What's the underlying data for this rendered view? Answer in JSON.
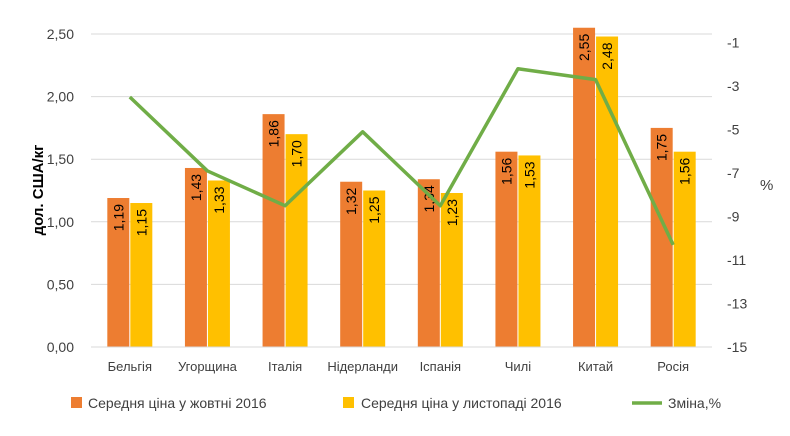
{
  "chart_data": {
    "type": "bar+line",
    "categories": [
      "Бельгія",
      "Угорщина",
      "Італія",
      "Нідерланди",
      "Іспанія",
      "Чилі",
      "Китай",
      "Росія"
    ],
    "series": [
      {
        "name": "Середня ціна у жовтні 2016",
        "type": "bar",
        "axis": "left",
        "color": "#ED7D31",
        "values": [
          1.19,
          1.43,
          1.86,
          1.32,
          1.34,
          1.56,
          2.55,
          1.75
        ],
        "labels": [
          "1,19",
          "1,43",
          "1,86",
          "1,32",
          "1,34",
          "1,56",
          "2,55",
          "1,75"
        ]
      },
      {
        "name": "Середня ціна у листопаді 2016",
        "type": "bar",
        "axis": "right",
        "color": "#FFC000",
        "values": [
          1.15,
          1.33,
          1.7,
          1.25,
          1.23,
          1.53,
          2.48,
          1.56
        ],
        "labels": [
          "1,15",
          "1,33",
          "1,70",
          "1,25",
          "1,23",
          "1,53",
          "2,48",
          "1,56"
        ]
      },
      {
        "name": "Зміна,%",
        "type": "line",
        "axis": "right",
        "color": "#70AD47",
        "values": [
          -3.5,
          -6.9,
          -8.5,
          -5.1,
          -8.5,
          -2.2,
          -2.7,
          -10.3
        ]
      }
    ],
    "ylabel": "дол. США/кг",
    "y2label": "%",
    "ylim": [
      0,
      2.5
    ],
    "yticks": [
      "0,00",
      "0,50",
      "1,00",
      "1,50",
      "2,00",
      "2,50"
    ],
    "ytick_values": [
      0,
      0.5,
      1,
      1.5,
      2,
      2.5
    ],
    "y2lim": [
      -15,
      -0.6
    ],
    "y2ticks": [
      "-1",
      "-3",
      "-5",
      "-7",
      "-9",
      "-11",
      "-13",
      "-15"
    ],
    "y2tick_values": [
      -1,
      -3,
      -5,
      -7,
      -9,
      -11,
      -13,
      -15
    ],
    "grid": true,
    "legend_position": "bottom"
  }
}
